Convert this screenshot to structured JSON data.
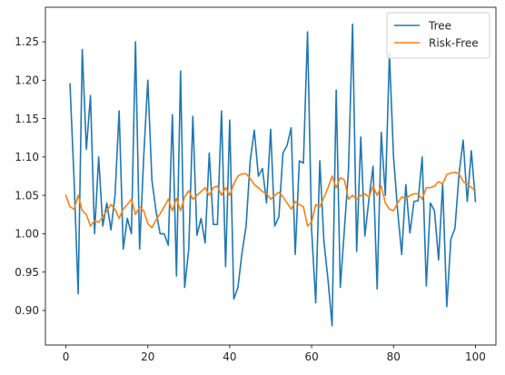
{
  "chart_data": {
    "type": "line",
    "title": "",
    "xlabel": "",
    "ylabel": "",
    "xlim": [
      -5,
      105
    ],
    "ylim": [
      0.855,
      1.295
    ],
    "x_ticks": [
      0,
      20,
      40,
      60,
      80,
      100
    ],
    "y_ticks": [
      0.9,
      0.95,
      1.0,
      1.05,
      1.1,
      1.15,
      1.2,
      1.25
    ],
    "grid": false,
    "legend_position": "top-right",
    "series": [
      {
        "name": "Tree",
        "color": "#1f77b4",
        "x_start": 1,
        "x_step": 1,
        "values": [
          1.195,
          1.07,
          0.922,
          1.24,
          1.11,
          1.18,
          1.0,
          1.1,
          1.01,
          1.04,
          1.005,
          1.05,
          1.16,
          0.98,
          1.02,
          1.0,
          1.25,
          0.98,
          1.1,
          1.2,
          1.07,
          1.03,
          1.0,
          1.0,
          0.985,
          1.155,
          0.945,
          1.212,
          0.93,
          0.98,
          1.153,
          0.998,
          1.02,
          0.988,
          1.105,
          1.012,
          1.012,
          1.16,
          0.957,
          1.148,
          0.915,
          0.93,
          0.975,
          1.01,
          1.095,
          1.135,
          1.075,
          1.085,
          1.04,
          1.136,
          1.01,
          1.022,
          1.105,
          1.115,
          1.138,
          0.973,
          1.095,
          1.092,
          1.263,
          1.005,
          0.91,
          1.095,
          0.99,
          0.94,
          0.88,
          1.187,
          0.93,
          1.005,
          1.083,
          1.273,
          0.977,
          1.126,
          0.997,
          1.045,
          1.088,
          0.928,
          1.132,
          1.05,
          1.235,
          1.1,
          1.03,
          0.973,
          1.064,
          1.001,
          1.042,
          1.043,
          1.1,
          0.932,
          1.04,
          1.03,
          0.966,
          1.065,
          0.905,
          0.993,
          1.007,
          1.078,
          1.122,
          1.042,
          1.108,
          1.042
        ]
      },
      {
        "name": "Risk-Free",
        "color": "#ff7f0e",
        "x_start": 0,
        "x_step": 1,
        "values": [
          1.05,
          1.035,
          1.032,
          1.05,
          1.03,
          1.025,
          1.01,
          1.017,
          1.015,
          1.022,
          1.03,
          1.038,
          1.032,
          1.02,
          1.032,
          1.038,
          1.045,
          1.025,
          1.035,
          1.03,
          1.013,
          1.008,
          1.018,
          1.026,
          1.035,
          1.045,
          1.03,
          1.046,
          1.03,
          1.048,
          1.056,
          1.045,
          1.05,
          1.055,
          1.06,
          1.05,
          1.06,
          1.062,
          1.05,
          1.06,
          1.05,
          1.065,
          1.075,
          1.078,
          1.078,
          1.072,
          1.064,
          1.06,
          1.055,
          1.052,
          1.045,
          1.05,
          1.054,
          1.048,
          1.04,
          1.032,
          1.042,
          1.038,
          1.035,
          1.01,
          1.015,
          1.038,
          1.035,
          1.047,
          1.06,
          1.075,
          1.06,
          1.073,
          1.07,
          1.045,
          1.05,
          1.045,
          1.05,
          1.052,
          1.048,
          1.062,
          1.05,
          1.062,
          1.04,
          1.032,
          1.03,
          1.04,
          1.048,
          1.045,
          1.05,
          1.052,
          1.052,
          1.045,
          1.06,
          1.06,
          1.062,
          1.068,
          1.065,
          1.077,
          1.079,
          1.08,
          1.078,
          1.068,
          1.065,
          1.06,
          1.057
        ]
      }
    ]
  }
}
